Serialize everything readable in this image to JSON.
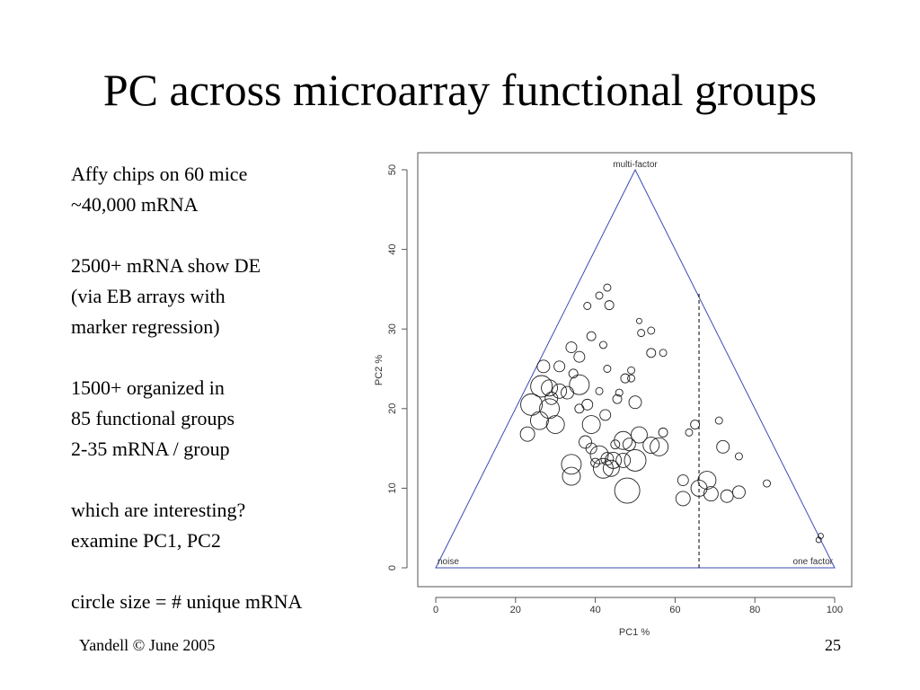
{
  "slide": {
    "title": "PC across microarray functional groups",
    "footer_left": "Yandell © June 2005",
    "footer_right": "25"
  },
  "bullets": [
    [
      "Affy chips on 60 mice",
      "~40,000 mRNA"
    ],
    [
      "2500+ mRNA show DE",
      "(via EB arrays with",
      "marker regression)"
    ],
    [
      "1500+ organized in",
      "85 functional groups",
      "2-35 mRNA / group"
    ],
    [
      "which are interesting?",
      "examine PC1, PC2"
    ],
    [
      "circle size = # unique mRNA"
    ]
  ],
  "chart_data": {
    "type": "scatter",
    "xlabel": "PC1 %",
    "ylabel": "PC2 %",
    "xlim": [
      0,
      100
    ],
    "ylim": [
      0,
      50
    ],
    "xticks": [
      0,
      20,
      40,
      60,
      80,
      100
    ],
    "yticks": [
      0,
      10,
      20,
      30,
      40,
      50
    ],
    "triangle": [
      [
        0,
        0
      ],
      [
        50,
        50
      ],
      [
        100,
        0
      ]
    ],
    "vertex_labels": [
      "noise",
      "multi-factor",
      "one factor"
    ],
    "reference_line": {
      "x": 66,
      "y_from": 0,
      "y_to": 34.5,
      "style": "dashed"
    },
    "colors": {
      "triangle": "#3b4bb5",
      "points": "#222222",
      "axes": "#555555"
    },
    "note": "circle size = # unique mRNA",
    "points": [
      [
        43,
        35.2,
        4
      ],
      [
        41,
        34.2,
        4
      ],
      [
        43.5,
        33,
        5
      ],
      [
        38,
        32.9,
        4
      ],
      [
        51,
        31,
        3
      ],
      [
        54,
        29.8,
        4
      ],
      [
        51.5,
        29.5,
        4
      ],
      [
        39,
        29.1,
        5
      ],
      [
        42,
        28,
        4
      ],
      [
        34,
        27.7,
        6
      ],
      [
        54,
        27,
        5
      ],
      [
        57,
        27,
        4
      ],
      [
        36,
        26.5,
        6
      ],
      [
        27,
        25.3,
        7
      ],
      [
        31,
        25.3,
        6
      ],
      [
        43,
        25,
        4
      ],
      [
        49,
        24.8,
        4
      ],
      [
        47.5,
        23.8,
        5
      ],
      [
        49,
        23.8,
        4
      ],
      [
        34.5,
        24.4,
        5
      ],
      [
        36,
        23,
        11
      ],
      [
        26.5,
        22.8,
        12
      ],
      [
        31,
        22.2,
        8
      ],
      [
        28.5,
        22.6,
        9
      ],
      [
        33,
        22,
        7
      ],
      [
        29,
        21.3,
        7
      ],
      [
        41,
        22.2,
        4
      ],
      [
        46,
        22,
        4
      ],
      [
        45.5,
        21.2,
        5
      ],
      [
        50,
        20.8,
        7
      ],
      [
        24,
        20.5,
        12
      ],
      [
        28.5,
        20,
        11
      ],
      [
        38,
        20.5,
        6
      ],
      [
        36,
        20,
        5
      ],
      [
        26,
        18.5,
        10
      ],
      [
        30,
        18,
        10
      ],
      [
        42.5,
        19.2,
        6
      ],
      [
        39,
        18,
        10
      ],
      [
        23,
        16.8,
        8
      ],
      [
        47,
        16,
        10
      ],
      [
        51,
        16.7,
        9
      ],
      [
        54,
        15.4,
        9
      ],
      [
        57,
        17,
        5
      ],
      [
        65,
        18,
        5
      ],
      [
        63.5,
        17,
        4
      ],
      [
        71,
        18.5,
        4
      ],
      [
        37.5,
        15.8,
        7
      ],
      [
        39,
        15,
        6
      ],
      [
        45,
        15.5,
        5
      ],
      [
        48.5,
        15.5,
        7
      ],
      [
        56,
        15.2,
        10
      ],
      [
        72,
        15.2,
        7
      ],
      [
        76,
        14,
        4
      ],
      [
        41,
        14.2,
        10
      ],
      [
        43,
        13.7,
        7
      ],
      [
        40,
        13.2,
        5
      ],
      [
        44.5,
        13.5,
        9
      ],
      [
        47,
        13.5,
        8
      ],
      [
        50,
        13.5,
        12
      ],
      [
        42,
        12.5,
        11
      ],
      [
        44,
        12.5,
        9
      ],
      [
        34,
        13,
        11
      ],
      [
        34,
        11.5,
        10
      ],
      [
        62,
        11,
        6
      ],
      [
        48,
        9.7,
        14
      ],
      [
        66,
        10,
        9
      ],
      [
        68,
        11,
        10
      ],
      [
        62,
        8.7,
        8
      ],
      [
        69,
        9.3,
        8
      ],
      [
        73,
        9,
        7
      ],
      [
        76,
        9.5,
        7
      ],
      [
        83,
        10.6,
        4
      ],
      [
        96,
        3.5,
        3
      ],
      [
        96.5,
        4,
        3
      ]
    ]
  }
}
